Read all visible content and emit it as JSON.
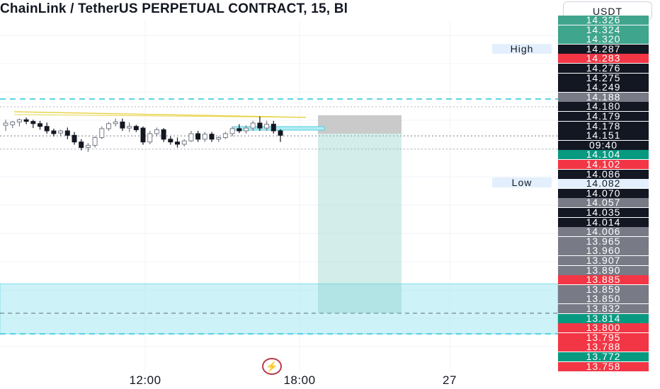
{
  "header": {
    "title": "ChainLink / TetherUS PERPETUAL CONTRACT, 15, Bl",
    "currency": "USDT"
  },
  "labels": {
    "high": "High",
    "low": "Low"
  },
  "badge": {
    "icon": "lightning-icon",
    "glyph": "⚡"
  },
  "colors": {
    "up": "#787b86",
    "down": "#131722",
    "sell": "#f23645",
    "buy": "#089981",
    "zone": "#b2ebf2",
    "grid": "#f0f3fa"
  },
  "price_axis": [
    {
      "text": "14.326",
      "kind": "teal"
    },
    {
      "text": "14.324",
      "kind": "teal"
    },
    {
      "text": "14.320",
      "kind": "teal"
    },
    {
      "text": "14.287",
      "kind": "dark"
    },
    {
      "text": "14.283",
      "kind": "red"
    },
    {
      "text": "14.276",
      "kind": "dark"
    },
    {
      "text": "14.275",
      "kind": "dark"
    },
    {
      "text": "14.249",
      "kind": "dark"
    },
    {
      "text": "14.188",
      "kind": "gray"
    },
    {
      "text": "14.180",
      "kind": "dark"
    },
    {
      "text": "14.179",
      "kind": "dark"
    },
    {
      "text": "14.178",
      "kind": "dark"
    },
    {
      "text": "14.151",
      "kind": "dark"
    },
    {
      "text": "09:40",
      "kind": "dark"
    },
    {
      "text": "14.104",
      "kind": "green"
    },
    {
      "text": "14.102",
      "kind": "red"
    },
    {
      "text": "14.086",
      "kind": "dark"
    },
    {
      "text": "14.082",
      "kind": "light"
    },
    {
      "text": "14.070",
      "kind": "dark"
    },
    {
      "text": "14.057",
      "kind": "gray"
    },
    {
      "text": "14.035",
      "kind": "dark"
    },
    {
      "text": "14.014",
      "kind": "dark"
    },
    {
      "text": "14.006",
      "kind": "gray"
    },
    {
      "text": "13.965",
      "kind": "gray"
    },
    {
      "text": "13.960",
      "kind": "gray"
    },
    {
      "text": "13.907",
      "kind": "gray"
    },
    {
      "text": "13.890",
      "kind": "gray"
    },
    {
      "text": "13.885",
      "kind": "red"
    },
    {
      "text": "13.859",
      "kind": "gray"
    },
    {
      "text": "13.850",
      "kind": "gray"
    },
    {
      "text": "13.832",
      "kind": "gray"
    },
    {
      "text": "13.814",
      "kind": "green"
    },
    {
      "text": "13.800",
      "kind": "red"
    },
    {
      "text": "13.795",
      "kind": "red"
    },
    {
      "text": "13.788",
      "kind": "red"
    },
    {
      "text": "13.772",
      "kind": "green"
    },
    {
      "text": "13.758",
      "kind": "red"
    }
  ],
  "time_axis": [
    "12:00",
    "18:00",
    "27"
  ],
  "chart_data": {
    "type": "candlestick",
    "symbol": "ChainLink / TetherUS PERPETUAL CONTRACT",
    "interval": "15",
    "ylim": [
      13.74,
      14.33
    ],
    "high": 14.287,
    "low": 14.082,
    "last_price": 14.151,
    "countdown": "09:40",
    "position_entry": 14.151,
    "position_stop": 14.188,
    "position_target": 13.832,
    "demand_zone": [
      13.795,
      13.885
    ],
    "candles": [
      {
        "o": 14.17,
        "h": 14.18,
        "l": 14.16,
        "c": 14.174
      },
      {
        "o": 14.171,
        "h": 14.178,
        "l": 14.165,
        "c": 14.176
      },
      {
        "o": 14.176,
        "h": 14.182,
        "l": 14.168,
        "c": 14.18
      },
      {
        "o": 14.18,
        "h": 14.184,
        "l": 14.172,
        "c": 14.177
      },
      {
        "o": 14.177,
        "h": 14.18,
        "l": 14.165,
        "c": 14.173
      },
      {
        "o": 14.173,
        "h": 14.178,
        "l": 14.162,
        "c": 14.168
      },
      {
        "o": 14.168,
        "h": 14.175,
        "l": 14.155,
        "c": 14.16
      },
      {
        "o": 14.16,
        "h": 14.164,
        "l": 14.15,
        "c": 14.155
      },
      {
        "o": 14.156,
        "h": 14.162,
        "l": 14.15,
        "c": 14.16
      },
      {
        "o": 14.16,
        "h": 14.166,
        "l": 14.145,
        "c": 14.152
      },
      {
        "o": 14.152,
        "h": 14.158,
        "l": 14.135,
        "c": 14.14
      },
      {
        "o": 14.14,
        "h": 14.145,
        "l": 14.125,
        "c": 14.13
      },
      {
        "o": 14.13,
        "h": 14.138,
        "l": 14.122,
        "c": 14.134
      },
      {
        "o": 14.134,
        "h": 14.15,
        "l": 14.13,
        "c": 14.148
      },
      {
        "o": 14.148,
        "h": 14.168,
        "l": 14.145,
        "c": 14.164
      },
      {
        "o": 14.164,
        "h": 14.176,
        "l": 14.16,
        "c": 14.173
      },
      {
        "o": 14.173,
        "h": 14.182,
        "l": 14.168,
        "c": 14.176
      },
      {
        "o": 14.176,
        "h": 14.182,
        "l": 14.16,
        "c": 14.165
      },
      {
        "o": 14.165,
        "h": 14.175,
        "l": 14.158,
        "c": 14.168
      },
      {
        "o": 14.168,
        "h": 14.171,
        "l": 14.158,
        "c": 14.162
      },
      {
        "o": 14.165,
        "h": 14.168,
        "l": 14.135,
        "c": 14.14
      },
      {
        "o": 14.14,
        "h": 14.16,
        "l": 14.136,
        "c": 14.155
      },
      {
        "o": 14.155,
        "h": 14.166,
        "l": 14.15,
        "c": 14.162
      },
      {
        "o": 14.162,
        "h": 14.165,
        "l": 14.14,
        "c": 14.145
      },
      {
        "o": 14.145,
        "h": 14.15,
        "l": 14.135,
        "c": 14.14
      },
      {
        "o": 14.14,
        "h": 14.148,
        "l": 14.13,
        "c": 14.136
      },
      {
        "o": 14.136,
        "h": 14.145,
        "l": 14.132,
        "c": 14.142
      },
      {
        "o": 14.142,
        "h": 14.16,
        "l": 14.14,
        "c": 14.155
      },
      {
        "o": 14.155,
        "h": 14.16,
        "l": 14.14,
        "c": 14.145
      },
      {
        "o": 14.145,
        "h": 14.158,
        "l": 14.14,
        "c": 14.154
      },
      {
        "o": 14.154,
        "h": 14.158,
        "l": 14.14,
        "c": 14.145
      },
      {
        "o": 14.145,
        "h": 14.15,
        "l": 14.14,
        "c": 14.148
      },
      {
        "o": 14.148,
        "h": 14.158,
        "l": 14.145,
        "c": 14.155
      },
      {
        "o": 14.155,
        "h": 14.168,
        "l": 14.15,
        "c": 14.164
      },
      {
        "o": 14.164,
        "h": 14.172,
        "l": 14.156,
        "c": 14.16
      },
      {
        "o": 14.16,
        "h": 14.17,
        "l": 14.155,
        "c": 14.165
      },
      {
        "o": 14.165,
        "h": 14.178,
        "l": 14.16,
        "c": 14.174
      },
      {
        "o": 14.174,
        "h": 14.186,
        "l": 14.16,
        "c": 14.165
      },
      {
        "o": 14.165,
        "h": 14.178,
        "l": 14.16,
        "c": 14.172
      },
      {
        "o": 14.172,
        "h": 14.178,
        "l": 14.155,
        "c": 14.16
      },
      {
        "o": 14.16,
        "h": 14.163,
        "l": 14.14,
        "c": 14.152
      }
    ]
  }
}
